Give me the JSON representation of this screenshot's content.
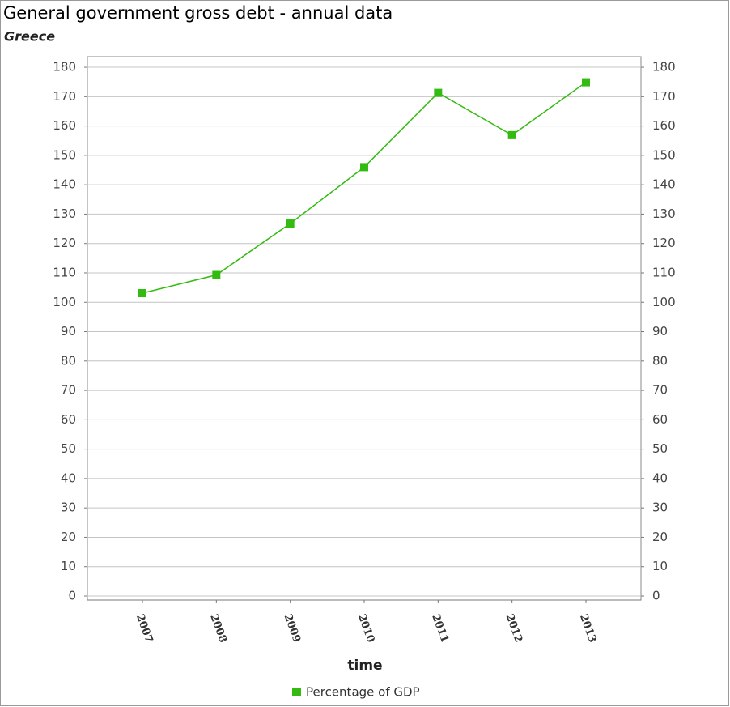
{
  "chart_data": {
    "type": "line",
    "title": "General government gross debt - annual data",
    "subtitle": "Greece",
    "x_label": "time",
    "categories": [
      "2007",
      "2008",
      "2009",
      "2010",
      "2011",
      "2012",
      "2013"
    ],
    "series": [
      {
        "name": "Percentage of GDP",
        "color": "#33bb11",
        "values": [
          103.1,
          109.3,
          126.8,
          146.0,
          171.3,
          156.9,
          174.9
        ]
      }
    ],
    "ylim": [
      0,
      183.6
    ],
    "yticks": [
      0,
      10,
      20,
      30,
      40,
      50,
      60,
      70,
      80,
      90,
      100,
      110,
      120,
      130,
      140,
      150,
      160,
      170,
      180
    ],
    "grid": true,
    "right_axis": true,
    "legend": "bottom"
  }
}
